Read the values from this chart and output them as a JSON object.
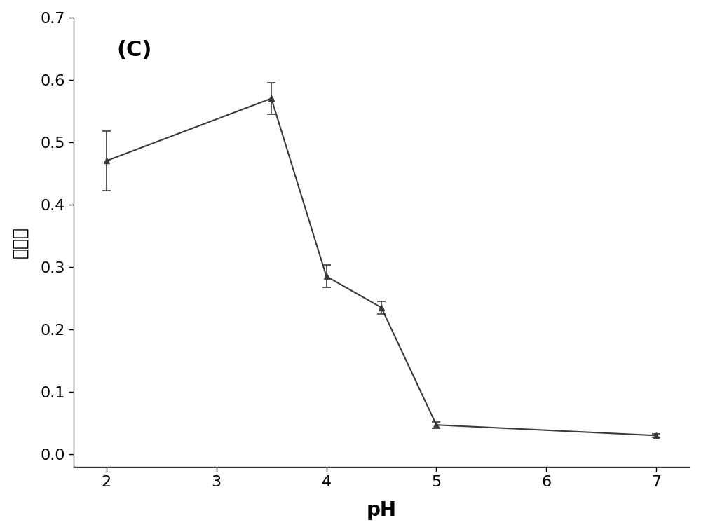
{
  "x": [
    2,
    3.5,
    4,
    4.5,
    5,
    7
  ],
  "y": [
    0.47,
    0.57,
    0.285,
    0.235,
    0.047,
    0.03
  ],
  "yerr": [
    0.048,
    0.025,
    0.018,
    0.01,
    0.005,
    0.003
  ],
  "xlabel": "pH",
  "ylabel": "吸光度",
  "label_text": "(C)",
  "xlim": [
    1.7,
    7.3
  ],
  "ylim": [
    -0.02,
    0.7
  ],
  "xticks": [
    2,
    3,
    4,
    5,
    6,
    7
  ],
  "yticks": [
    0.0,
    0.1,
    0.2,
    0.3,
    0.4,
    0.5,
    0.6,
    0.7
  ],
  "line_color": "#3a3a3a",
  "marker": "^",
  "marker_size": 6,
  "linewidth": 1.5,
  "capsize": 4,
  "elinewidth": 1.2,
  "xlabel_fontsize": 20,
  "ylabel_fontsize": 18,
  "tick_fontsize": 16,
  "label_fontsize": 22,
  "background_color": "#ffffff",
  "figure_bg": "#ffffff"
}
